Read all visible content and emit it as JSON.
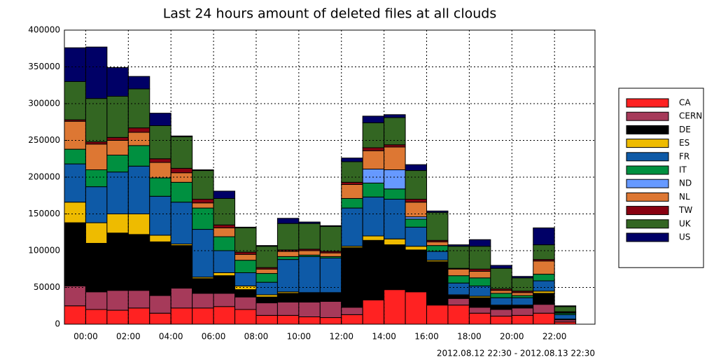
{
  "chart_data": {
    "type": "stacked_bar",
    "title": "Last 24 hours amount of deleted files at all clouds",
    "footer": "2012.08.12 22:30 - 2012.08.13 22:30",
    "x": [
      -1,
      0,
      1,
      2,
      3,
      4,
      5,
      6,
      7,
      8,
      9,
      10,
      11,
      12,
      13,
      14,
      15,
      16,
      17,
      18,
      19,
      20,
      21,
      22
    ],
    "xlim": [
      -1,
      23.9
    ],
    "xticks": [
      {
        "value": 0,
        "label": "00:00"
      },
      {
        "value": 2,
        "label": "02:00"
      },
      {
        "value": 4,
        "label": "04:00"
      },
      {
        "value": 6,
        "label": "06:00"
      },
      {
        "value": 8,
        "label": "08:00"
      },
      {
        "value": 10,
        "label": "10:00"
      },
      {
        "value": 12,
        "label": "12:00"
      },
      {
        "value": 14,
        "label": "14:00"
      },
      {
        "value": 16,
        "label": "16:00"
      },
      {
        "value": 18,
        "label": "18:00"
      },
      {
        "value": 20,
        "label": "20:00"
      },
      {
        "value": 22,
        "label": "22:00"
      }
    ],
    "ylim": [
      0,
      400000
    ],
    "yticks": [
      0,
      50000,
      100000,
      150000,
      200000,
      250000,
      300000,
      350000,
      400000
    ],
    "grid": true,
    "legend": "right",
    "series": [
      {
        "name": "CA",
        "color": "#ff2222",
        "values": [
          25000,
          20000,
          19000,
          22000,
          15000,
          22000,
          22000,
          24000,
          20000,
          12000,
          12000,
          10000,
          9000,
          13000,
          33000,
          47000,
          44000,
          26000,
          26000,
          15000,
          11000,
          12000,
          15000,
          3000
        ]
      },
      {
        "name": "CERN",
        "color": "#a63a5a",
        "values": [
          27000,
          24000,
          27000,
          24000,
          24000,
          27000,
          20000,
          18000,
          17000,
          17000,
          18000,
          20000,
          22000,
          10000,
          0,
          0,
          0,
          1000,
          9000,
          8000,
          9000,
          10000,
          12000,
          3000
        ]
      },
      {
        "name": "DE",
        "color": "#000000",
        "values": [
          86000,
          66000,
          78000,
          76000,
          73000,
          58000,
          20000,
          24000,
          10000,
          8000,
          12000,
          12000,
          11000,
          81000,
          81000,
          61000,
          57000,
          58000,
          4000,
          13000,
          5000,
          3000,
          15000,
          1000
        ]
      },
      {
        "name": "ES",
        "color": "#eebb00",
        "values": [
          28000,
          28000,
          26000,
          28000,
          9000,
          2000,
          2000,
          4000,
          5000,
          3000,
          2000,
          1000,
          1000,
          2000,
          6000,
          8000,
          5000,
          2000,
          1000,
          2000,
          1000,
          1000,
          3000,
          0
        ]
      },
      {
        "name": "FR",
        "color": "#0e5aa7",
        "values": [
          52000,
          49000,
          57000,
          65000,
          53000,
          57000,
          65000,
          30000,
          18000,
          17000,
          44000,
          49000,
          47000,
          52000,
          53000,
          54000,
          26000,
          12000,
          16000,
          14000,
          10000,
          10000,
          14000,
          6000
        ]
      },
      {
        "name": "IT",
        "color": "#009040",
        "values": [
          20000,
          23000,
          23000,
          28000,
          25000,
          27000,
          29000,
          19000,
          17000,
          12000,
          4000,
          2000,
          2000,
          13000,
          19000,
          14000,
          11000,
          8000,
          10000,
          11000,
          6000,
          3000,
          9000,
          2000
        ]
      },
      {
        "name": "ND",
        "color": "#6699ff",
        "values": [
          0,
          0,
          0,
          0,
          0,
          0,
          0,
          0,
          0,
          0,
          0,
          0,
          0,
          0,
          19000,
          26000,
          3000,
          0,
          0,
          0,
          0,
          0,
          0,
          0
        ]
      },
      {
        "name": "NL",
        "color": "#dd7733",
        "values": [
          38000,
          35000,
          20000,
          18000,
          21000,
          13000,
          7000,
          12000,
          8000,
          6000,
          7000,
          6000,
          5000,
          19000,
          25000,
          31000,
          20000,
          5000,
          9000,
          9000,
          4000,
          4000,
          18000,
          1000
        ]
      },
      {
        "name": "TW",
        "color": "#880011",
        "values": [
          2000,
          3000,
          4000,
          6000,
          5000,
          6000,
          5000,
          4000,
          3000,
          2000,
          2000,
          2000,
          2000,
          3000,
          4000,
          3000,
          4000,
          2000,
          1000,
          3000,
          2000,
          2000,
          2000,
          1000
        ]
      },
      {
        "name": "UK",
        "color": "#336622",
        "values": [
          52000,
          59000,
          56000,
          53000,
          45000,
          43000,
          39000,
          36000,
          33000,
          29000,
          36000,
          35000,
          34000,
          28000,
          34000,
          37000,
          39000,
          38000,
          30000,
          31000,
          28000,
          18000,
          20000,
          7000
        ]
      },
      {
        "name": "US",
        "color": "#000066",
        "values": [
          46000,
          70000,
          39000,
          17000,
          17000,
          1000,
          1000,
          10000,
          1000,
          1000,
          7000,
          2000,
          1000,
          5000,
          9000,
          4000,
          8000,
          2000,
          2000,
          9000,
          4000,
          2000,
          23000,
          1000
        ]
      }
    ]
  }
}
